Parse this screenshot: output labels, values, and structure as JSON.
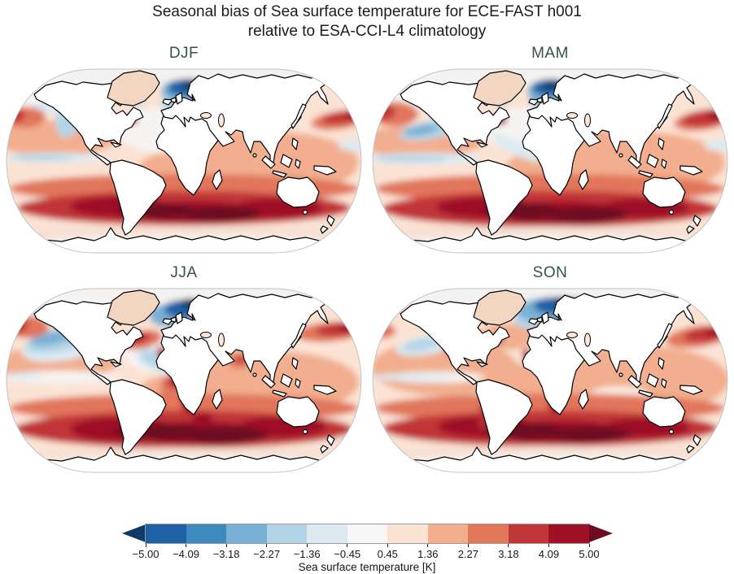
{
  "figure": {
    "title_line1": "Seasonal bias of Sea surface temperature for ECE-FAST h001",
    "title_line2": "relative to ESA-CCI-L4 climatology",
    "season_title_color": "#33534E",
    "land_color": "#ffffff",
    "coastline_color": "#000000",
    "map_edge_color": "#c2c2c2"
  },
  "panels": [
    {
      "label": "DJF"
    },
    {
      "label": "MAM"
    },
    {
      "label": "JJA"
    },
    {
      "label": "SON"
    }
  ],
  "colorbar": {
    "label": "Sea surface temperature [K]",
    "ticks": [
      "−5.00",
      "−4.09",
      "−3.18",
      "−2.27",
      "−1.36",
      "−0.45",
      "0.45",
      "1.36",
      "2.27",
      "3.18",
      "4.09",
      "5.00"
    ],
    "tick_values": [
      -5.0,
      -4.09,
      -3.18,
      -2.27,
      -1.36,
      -0.45,
      0.45,
      1.36,
      2.27,
      3.18,
      4.09,
      5.0
    ],
    "segment_colors": [
      "#1f61a5",
      "#3c8abe",
      "#79b1d4",
      "#b3d5e7",
      "#dcebf2",
      "#f7f6f4",
      "#fbe3d4",
      "#f2ae8e",
      "#e1765b",
      "#c13639",
      "#9e1127"
    ],
    "under_color": "#0d3a66",
    "over_color": "#6c0a21"
  },
  "chart_data": {
    "type": "heatmap",
    "title": "Seasonal bias of Sea surface temperature for ECE-FAST h001 relative to ESA-CCI-L4 climatology",
    "projection": "Robinson",
    "panels": [
      "DJF",
      "MAM",
      "JJA",
      "SON"
    ],
    "variable": "Sea surface temperature bias",
    "units": "K",
    "colorbar_label": "Sea surface temperature [K]",
    "levels": [
      -5.0,
      -4.09,
      -3.18,
      -2.27,
      -1.36,
      -0.45,
      0.45,
      1.36,
      2.27,
      3.18,
      4.09,
      5.0
    ],
    "extend": "both",
    "colormap": "RdBu_r, 11 discrete classes plus under/over arrow colors",
    "legend_position": "bottom",
    "grid": false,
    "notable_features": {
      "all_seasons": [
        "Strong warm bias (> 5 K) band over the Southern Ocean near 50–60°S in every season",
        "Cold bias (< −3 K) in the subpolar North Atlantic / Nordic Seas",
        "Warm bias in the Kuroshio region east of Japan reaching the map edge",
        "Mostly weak-to-moderate warm bias (0.45–2.27 K) over tropical and subtropical oceans",
        "Near-zero bias (white) over the central North Atlantic and Arctic; land masked white"
      ],
      "DJF": [
        "Light cool band along the northeast Pacific coast",
        "Narrow cool/neutral strip on the equatorial east Pacific",
        "Small intense warm spot off the US east coast (Gulf Stream)"
      ],
      "MAM": [
        "Cool oval in the eastern North Pacific",
        "Equatorial Pacific cool strip widest of all seasons",
        "Diagonal near-neutral band across the subtropical North Atlantic"
      ],
      "JJA": [
        "Large cool pool in the Gulf of Alaska / NE Pacific",
        "Strong warm bias in the Gulf Stream and northwest Pacific",
        "Warm bias in eastern equatorial Atlantic, Benguela region and Arabian Sea"
      ],
      "SON": [
        "Largest cold pool in the Nordic–Barents Seas",
        "Strong warm bias along eastern-boundary upwelling zones (California, Peru–Chile, Benguela, NW Africa)",
        "Overall warmest-looking panel with widespread 1–3 K warm bias"
      ]
    }
  }
}
